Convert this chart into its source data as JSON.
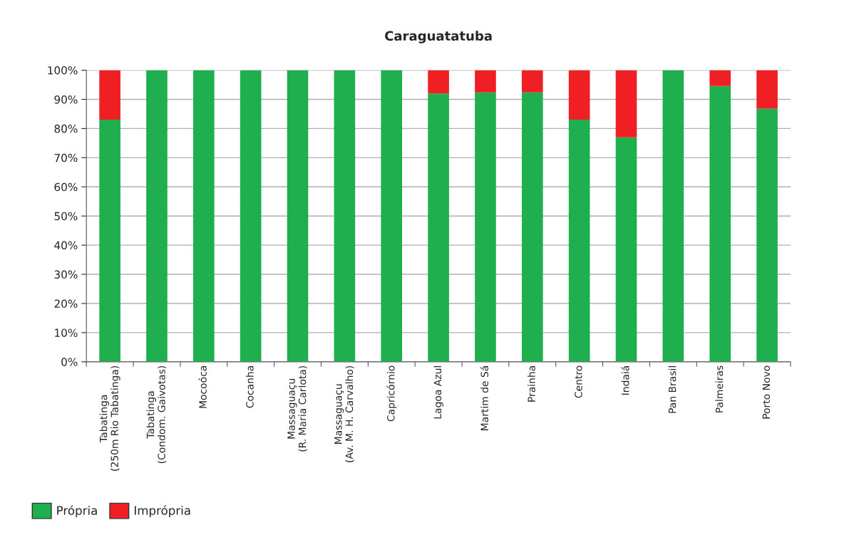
{
  "chart_data": {
    "type": "bar",
    "title": "Caraguatatuba",
    "stacked": true,
    "categories": [
      "Tabatinga\n(250m Rio Tabatinga)",
      "Tabatinga\n(Condom. Gaivotas)",
      "Mocoóca",
      "Cocanha",
      "Massaguaçu\n(R. Maria Carlota)",
      "Massaguaçu\n(Av. M. H. Carvalho)",
      "Capricórnio",
      "Lagoa Azul",
      "Martim de Sá",
      "Prainha",
      "Centro",
      "Indaiá",
      "Pan Brasil",
      "Palmeiras",
      "Porto Novo"
    ],
    "series": [
      {
        "name": "Própria",
        "color": "#1faf4f",
        "values": [
          83,
          100,
          100,
          100,
          100,
          100,
          100,
          92,
          92.4,
          92.4,
          83,
          77,
          100,
          94.6,
          86.8
        ]
      },
      {
        "name": "Imprópria",
        "color": "#ef1f24",
        "values": [
          17,
          null,
          null,
          null,
          null,
          null,
          null,
          8,
          7.6,
          7.6,
          17,
          23,
          null,
          5.4,
          13.2
        ]
      }
    ],
    "ylim": [
      0,
      100
    ],
    "yticks": [
      {
        "value": 0,
        "label": "0%"
      },
      {
        "value": 10,
        "label": "10%"
      },
      {
        "value": 20,
        "label": "20%"
      },
      {
        "value": 30,
        "label": "30%"
      },
      {
        "value": 40,
        "label": "40%"
      },
      {
        "value": 50,
        "label": "50%"
      },
      {
        "value": 60,
        "label": "60%"
      },
      {
        "value": 70,
        "label": "70%"
      },
      {
        "value": 80,
        "label": "80%"
      },
      {
        "value": 90,
        "label": "90%"
      },
      {
        "value": 100,
        "label": "100%"
      }
    ],
    "grid": "y",
    "legend": "bottom left"
  }
}
